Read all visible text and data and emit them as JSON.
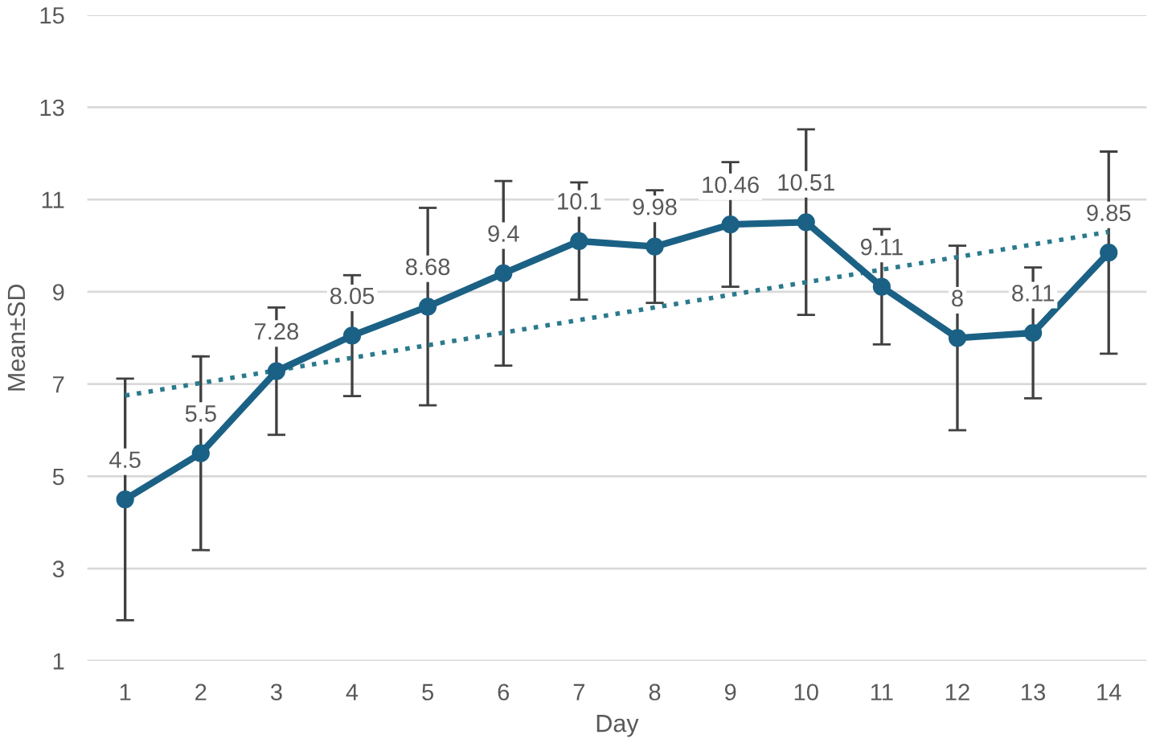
{
  "chart_data": {
    "type": "line",
    "xlabel": "Day",
    "ylabel": "Mean±SD",
    "x": [
      1,
      2,
      3,
      4,
      5,
      6,
      7,
      8,
      9,
      10,
      11,
      12,
      13,
      14
    ],
    "xlim": [
      0.5,
      14.5
    ],
    "xticks": [
      1,
      2,
      3,
      4,
      5,
      6,
      7,
      8,
      9,
      10,
      11,
      12,
      13,
      14
    ],
    "ylim": [
      1,
      15
    ],
    "yticks": [
      1,
      3,
      5,
      7,
      9,
      11,
      13,
      15
    ],
    "grid": "y",
    "series": [
      {
        "color": "#1b6185",
        "marker": "circle",
        "line_style": "solid",
        "values": [
          4.5,
          5.5,
          7.28,
          8.05,
          8.68,
          9.4,
          10.1,
          9.98,
          10.46,
          10.51,
          9.11,
          8,
          8.11,
          9.85
        ],
        "value_labels": [
          "4.5",
          "5.5",
          "7.28",
          "8.05",
          "8.68",
          "9.4",
          "10.1",
          "9.98",
          "10.46",
          "10.51",
          "9.11",
          "8",
          "8.11",
          "9.85"
        ],
        "errors": [
          2.62,
          2.1,
          1.38,
          1.31,
          2.14,
          2.0,
          1.27,
          1.22,
          1.35,
          2.01,
          1.25,
          2.0,
          1.42,
          2.19
        ]
      },
      {
        "type": "line",
        "color": "#2b7a8c",
        "marker": "none",
        "line_style": "dotted",
        "x": [
          1,
          14
        ],
        "values": [
          6.75,
          10.3
        ]
      }
    ]
  }
}
